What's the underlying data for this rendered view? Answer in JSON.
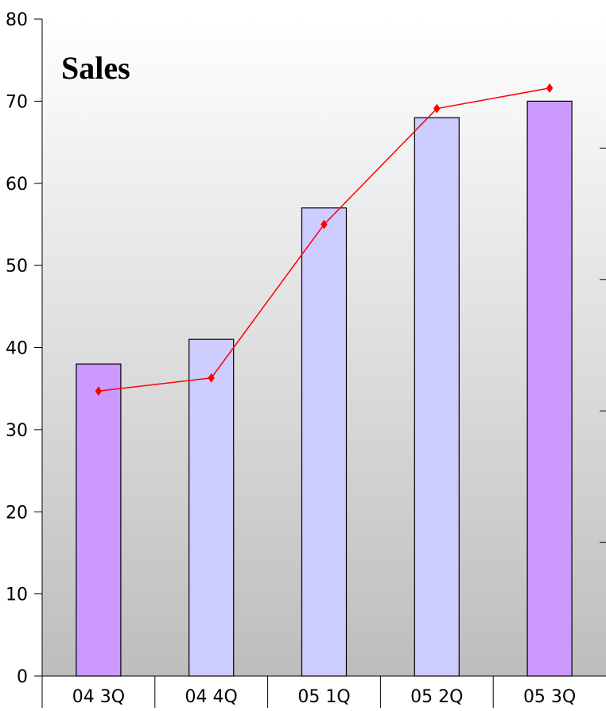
{
  "chart_data": {
    "type": "bar",
    "title": "Sales",
    "xlabel": "",
    "ylabel": "",
    "categories": [
      "04 3Q",
      "04 4Q",
      "05 1Q",
      "05 2Q",
      "05 3Q"
    ],
    "ylim": [
      0,
      80
    ],
    "yticks": [
      0,
      10,
      20,
      30,
      40,
      50,
      60,
      70,
      80
    ],
    "bar_colors": [
      "#cc99ff",
      "#ccccff",
      "#ccccff",
      "#ccccff",
      "#cc99ff"
    ],
    "line_color": "#ff0000",
    "grid": false,
    "series": [
      {
        "type": "bar",
        "values": [
          38,
          41,
          57,
          68,
          70
        ]
      },
      {
        "type": "line",
        "values": [
          34.7,
          36.3,
          55.0,
          69.1,
          71.6
        ]
      }
    ]
  }
}
